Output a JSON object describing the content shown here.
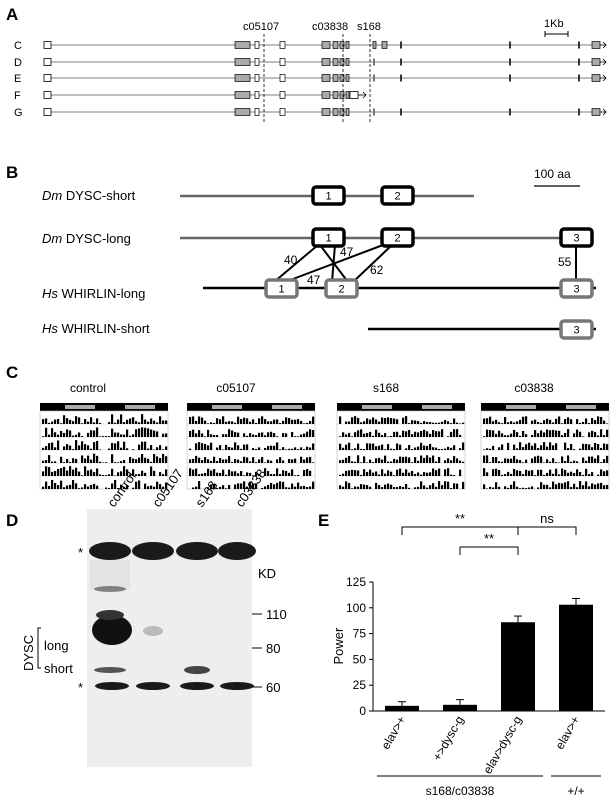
{
  "panels": {
    "a": {
      "letter": "A",
      "mutants": [
        "c05107",
        "c03838",
        "s168"
      ],
      "isoforms": [
        "C",
        "D",
        "E",
        "F",
        "G"
      ],
      "scale": "1Kb"
    },
    "b": {
      "letter": "B",
      "scale": "100 aa",
      "proteins": [
        {
          "species": "Dm",
          "name": "DYSC-short",
          "domains": [
            "1",
            "2"
          ]
        },
        {
          "species": "Dm",
          "name": "DYSC-long",
          "domains": [
            "1",
            "2",
            "3"
          ]
        },
        {
          "species": "Hs",
          "name": "WHIRLIN-long",
          "domains": [
            "1",
            "2",
            "3"
          ]
        },
        {
          "species": "Hs",
          "name": "WHIRLIN-short",
          "domains": [
            "3"
          ]
        }
      ],
      "identities": [
        "40",
        "47",
        "47",
        "62",
        "55"
      ]
    },
    "c": {
      "letter": "C",
      "genotypes": [
        "control",
        "c05107",
        "s168",
        "c03838"
      ]
    },
    "d": {
      "letter": "D",
      "lanes": [
        "control",
        "c05107",
        "s168",
        "c03838"
      ],
      "kd_label": "KD",
      "markers": [
        "110",
        "80",
        "60"
      ],
      "protein": "DYSC",
      "bands": [
        "long",
        "short"
      ],
      "asterisk": "*"
    },
    "e": {
      "letter": "E"
    }
  },
  "chart_data": {
    "type": "bar",
    "ylabel": "Power",
    "ylim": [
      0,
      125
    ],
    "yticks": [
      "0",
      "25",
      "50",
      "75",
      "100",
      "125"
    ],
    "categories": [
      "elav>+",
      "+>dysc-g",
      "elav>dysc-g",
      "elav>+"
    ],
    "values": [
      5,
      6,
      86,
      103
    ],
    "errors": [
      4,
      5,
      6,
      6
    ],
    "groups": [
      {
        "label": "s168/c03838",
        "categories": [
          0,
          1,
          2
        ]
      },
      {
        "label": "+/+",
        "categories": [
          3
        ]
      }
    ],
    "significance": [
      {
        "from": 0,
        "to": 2,
        "label": "**"
      },
      {
        "from": 1,
        "to": 2,
        "label": "**"
      },
      {
        "from": 2,
        "to": 3,
        "label": "ns"
      }
    ],
    "colors": {
      "bar": "#000000"
    }
  }
}
